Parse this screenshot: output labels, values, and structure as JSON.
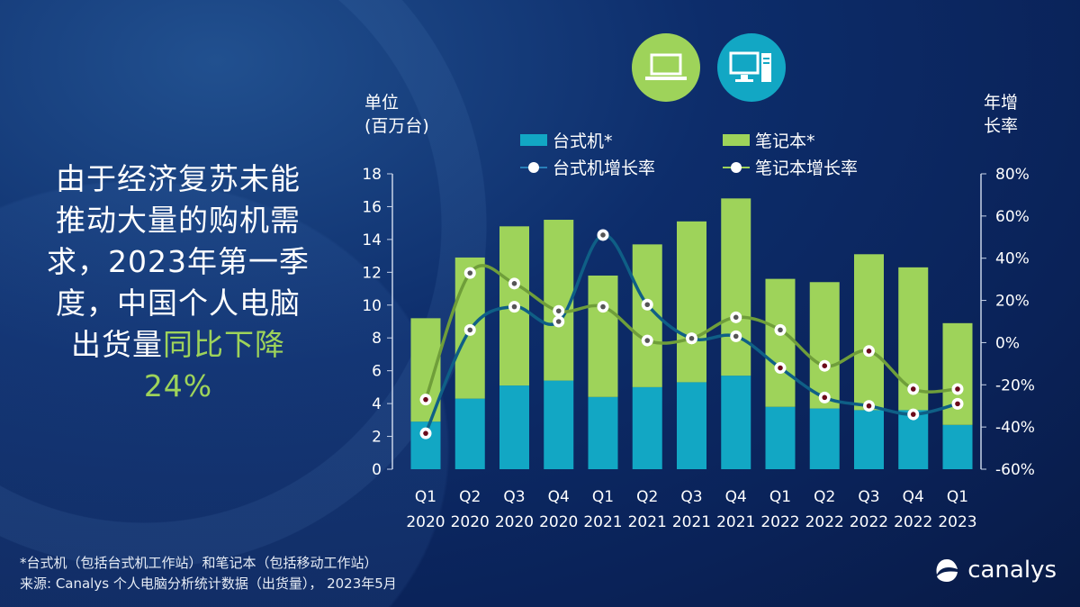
{
  "headline": {
    "line1": "由于经济复苏未能",
    "line2": "推动大量的购机需",
    "line3": "求，2023年第一季",
    "line4": "度，中国个人电脑",
    "line5a": "出货量",
    "line5b": "同比下降",
    "line6": "24%"
  },
  "left_unit": {
    "l1": "单位",
    "l2": "(百万台)"
  },
  "right_unit": {
    "l1": "年增",
    "l2": "长率"
  },
  "icons": {
    "laptop": "laptop-icon",
    "desktop": "desktop-computer-icon"
  },
  "colors": {
    "desktop": "#12a7c4",
    "notebook": "#9ed35a",
    "desktop_line": "#0f5f86",
    "notebook_line": "#6f9e3a",
    "highlight": "#9ed35a"
  },
  "footer": {
    "note": "*台式机（包括台式机工作站）和笔记本（包括移动工作站）",
    "source": "来源: Canalys 个人电脑分析统计数据（出货量）， 2023年5月"
  },
  "brand": "canalys",
  "chart_data": {
    "type": "bar",
    "stacked": true,
    "categories": [
      "Q1 2020",
      "Q2 2020",
      "Q3 2020",
      "Q4 2020",
      "Q1 2021",
      "Q2 2021",
      "Q3 2021",
      "Q4 2021",
      "Q1 2022",
      "Q2 2022",
      "Q3 2022",
      "Q4 2022",
      "Q1 2023"
    ],
    "cat_lines": [
      [
        "Q1",
        "2020"
      ],
      [
        "Q2",
        "2020"
      ],
      [
        "Q3",
        "2020"
      ],
      [
        "Q4",
        "2020"
      ],
      [
        "Q1",
        "2021"
      ],
      [
        "Q2",
        "2021"
      ],
      [
        "Q3",
        "2021"
      ],
      [
        "Q4",
        "2021"
      ],
      [
        "Q1",
        "2022"
      ],
      [
        "Q2",
        "2022"
      ],
      [
        "Q3",
        "2022"
      ],
      [
        "Q4",
        "2022"
      ],
      [
        "Q1",
        "2023"
      ]
    ],
    "series": [
      {
        "name": "台式机*",
        "type": "bar",
        "axis": "left",
        "values": [
          2.9,
          4.3,
          5.1,
          5.4,
          4.4,
          5.0,
          5.3,
          5.7,
          3.8,
          3.7,
          3.6,
          3.6,
          2.7
        ]
      },
      {
        "name": "笔记本*",
        "type": "bar",
        "axis": "left",
        "values": [
          6.3,
          8.6,
          9.7,
          9.8,
          7.4,
          8.7,
          9.8,
          10.8,
          7.8,
          7.7,
          9.5,
          8.7,
          6.2
        ]
      },
      {
        "name": "台式机增长率",
        "type": "line",
        "axis": "right",
        "values": [
          -43,
          6,
          17,
          10,
          51,
          18,
          2,
          3,
          -12,
          -26,
          -30,
          -34,
          -29
        ]
      },
      {
        "name": "笔记本增长率",
        "type": "line",
        "axis": "right",
        "values": [
          -27,
          33,
          28,
          15,
          17,
          1,
          2,
          12,
          6,
          -11,
          -4,
          -22,
          -22
        ]
      }
    ],
    "ylim": [
      0,
      18
    ],
    "yticks": [
      0,
      2,
      4,
      6,
      8,
      10,
      12,
      14,
      16,
      18
    ],
    "y2lim": [
      -60,
      80
    ],
    "y2ticks": [
      "-60%",
      "-40%",
      "-20%",
      "0%",
      "20%",
      "40%",
      "60%",
      "80%"
    ],
    "grid": false,
    "legend": "top-center"
  }
}
